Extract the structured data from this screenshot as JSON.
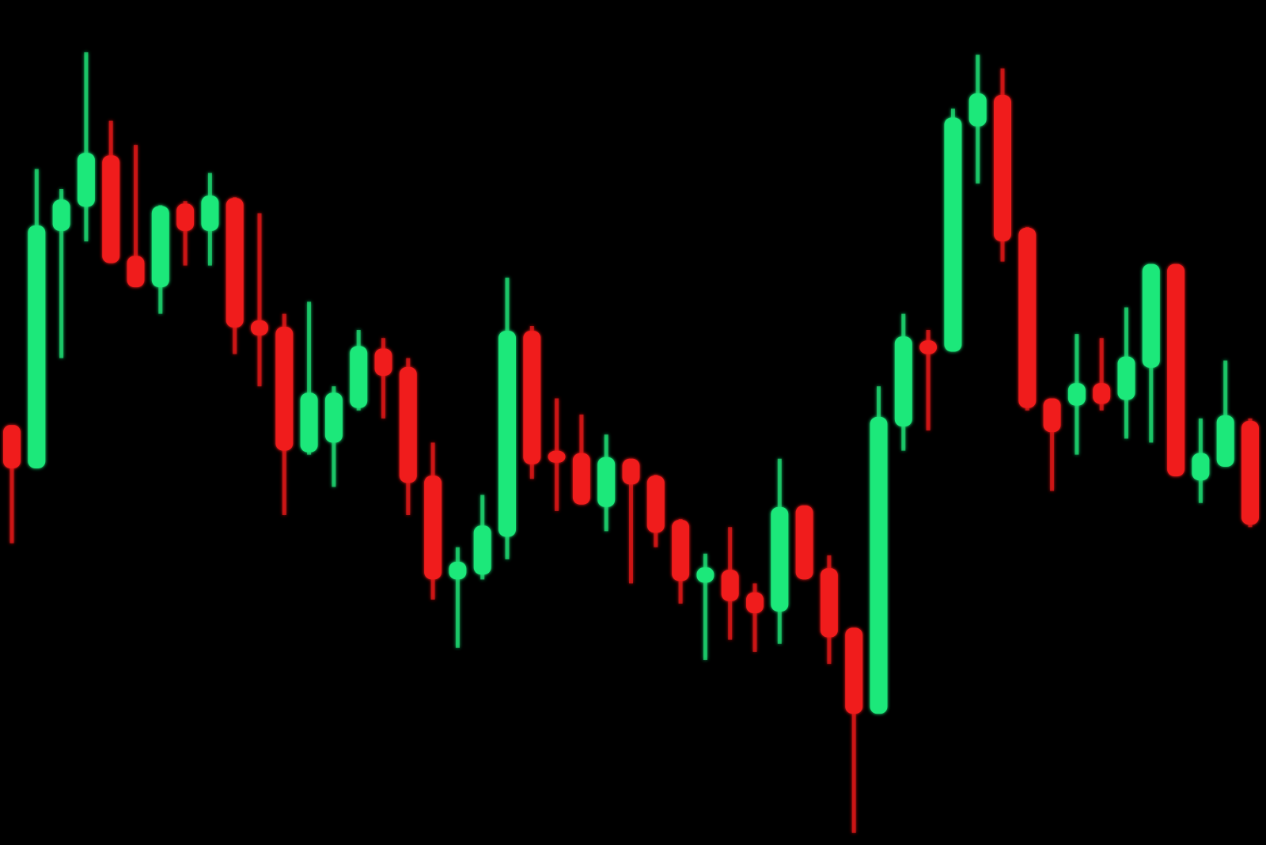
{
  "chart_data": {
    "type": "candlestick",
    "ylim": [
      0,
      1050
    ],
    "up_color": "#1ee87a",
    "down_color": "#f01a1a",
    "background": "#000000",
    "open": [
      520,
      470,
      765,
      795,
      855,
      730,
      695,
      795,
      765,
      802,
      650,
      642,
      490,
      502,
      545,
      615,
      592,
      457,
      332,
      338,
      385,
      637,
      488,
      485,
      422,
      478,
      457,
      402,
      328,
      340,
      312,
      292,
      420,
      342,
      268,
      165,
      522,
      625,
      615,
      895,
      930,
      765,
      553,
      548,
      572,
      555,
      595,
      720,
      455,
      472,
      525
    ],
    "high": [
      520,
      840,
      815,
      985,
      900,
      870,
      795,
      800,
      835,
      805,
      785,
      660,
      675,
      570,
      640,
      630,
      605,
      500,
      370,
      435,
      705,
      645,
      555,
      535,
      510,
      480,
      460,
      405,
      362,
      395,
      325,
      480,
      420,
      360,
      270,
      570,
      660,
      640,
      915,
      982,
      965,
      768,
      555,
      635,
      630,
      668,
      720,
      722,
      530,
      602,
      530
    ],
    "low": [
      375,
      470,
      605,
      750,
      725,
      695,
      660,
      720,
      720,
      610,
      570,
      410,
      485,
      445,
      540,
      530,
      410,
      305,
      245,
      330,
      355,
      455,
      415,
      425,
      390,
      325,
      370,
      300,
      230,
      255,
      240,
      250,
      330,
      225,
      15,
      165,
      490,
      515,
      615,
      822,
      725,
      540,
      440,
      485,
      540,
      505,
      500,
      460,
      425,
      470,
      395
    ],
    "close": [
      470,
      768,
      800,
      858,
      725,
      695,
      792,
      765,
      805,
      645,
      635,
      492,
      560,
      560,
      618,
      585,
      452,
      332,
      350,
      395,
      637,
      475,
      477,
      425,
      480,
      450,
      390,
      330,
      343,
      305,
      290,
      418,
      332,
      260,
      165,
      530,
      630,
      612,
      902,
      932,
      752,
      545,
      515,
      572,
      550,
      605,
      720,
      460,
      485,
      532,
      400
    ]
  }
}
